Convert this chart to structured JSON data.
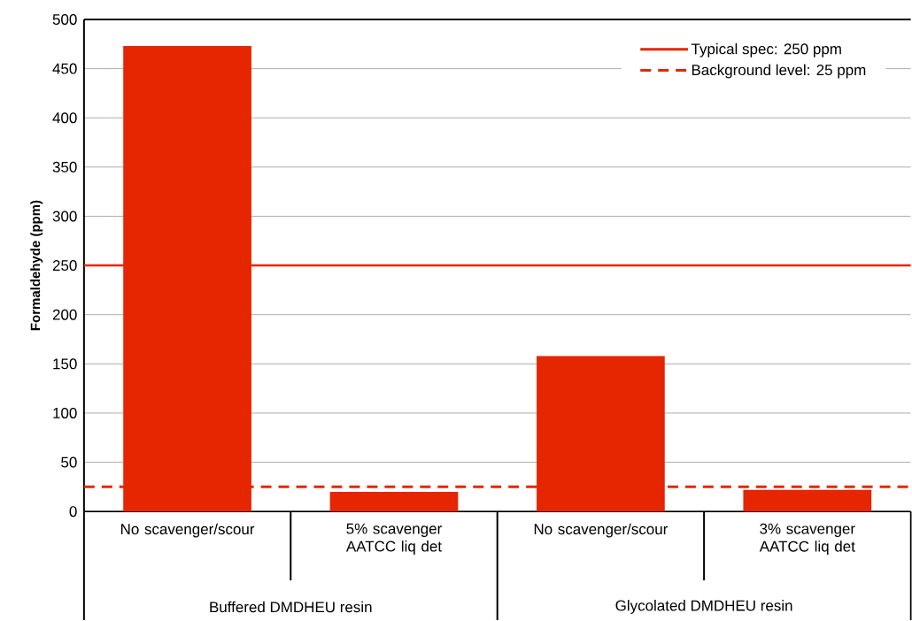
{
  "chart_data": {
    "type": "bar",
    "ylabel": "Formaldehyde (ppm)",
    "categories": [
      "No scavenger/scour",
      "5% scavenger AATCC liq det",
      "No scavenger/scour",
      "3% scavenger AATCC liq det"
    ],
    "values": [
      473,
      20,
      158,
      22
    ],
    "color": "#e52600",
    "ylim": [
      0,
      500
    ],
    "yticks": [
      0,
      50,
      100,
      150,
      200,
      250,
      300,
      350,
      400,
      450,
      500
    ],
    "grid": "y",
    "legend": "top right",
    "ref_lines": [
      {
        "axis": "y",
        "value": 250,
        "label": "Typical spec: 250 ppm",
        "color": "#e52600",
        "line_style": "solid"
      },
      {
        "axis": "y",
        "value": 25,
        "label": "Background level: 25 ppm",
        "color": "#e52600",
        "line_style": "dashed"
      }
    ],
    "annotations": [
      "Buffered DMDHEU resin",
      "Glycolated DMDHEU resin"
    ]
  }
}
